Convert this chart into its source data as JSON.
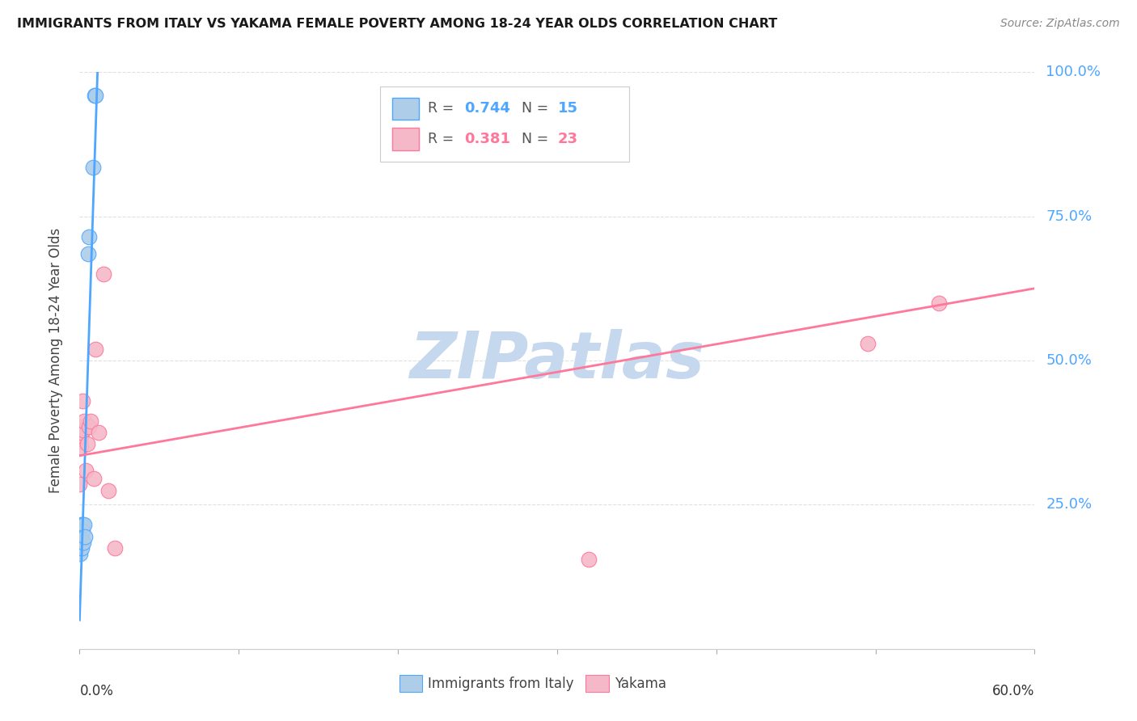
{
  "title": "IMMIGRANTS FROM ITALY VS YAKAMA FEMALE POVERTY AMONG 18-24 YEAR OLDS CORRELATION CHART",
  "source": "Source: ZipAtlas.com",
  "ylabel": "Female Poverty Among 18-24 Year Olds",
  "y_axis_max": 1.0,
  "y_axis_min": 0.0,
  "x_axis_max": 0.6,
  "x_axis_min": 0.0,
  "italy_R": "0.744",
  "italy_N": "15",
  "yakama_R": "0.381",
  "yakama_N": "23",
  "italy_color": "#aecde8",
  "yakama_color": "#f4b8c8",
  "italy_line_color": "#4da6ff",
  "yakama_line_color": "#ff7799",
  "italy_x": [
    0.0005,
    0.0005,
    0.001,
    0.0012,
    0.0015,
    0.0018,
    0.002,
    0.0022,
    0.003,
    0.0032,
    0.0055,
    0.006,
    0.0085,
    0.0095,
    0.01
  ],
  "italy_y": [
    0.195,
    0.165,
    0.215,
    0.19,
    0.175,
    0.215,
    0.205,
    0.185,
    0.215,
    0.195,
    0.685,
    0.715,
    0.835,
    0.96,
    0.96
  ],
  "yakama_x": [
    0.0,
    0.0002,
    0.0005,
    0.0008,
    0.001,
    0.0012,
    0.0015,
    0.0018,
    0.0022,
    0.003,
    0.004,
    0.005,
    0.006,
    0.007,
    0.009,
    0.01,
    0.012,
    0.015,
    0.018,
    0.022,
    0.32,
    0.495,
    0.54
  ],
  "yakama_y": [
    0.285,
    0.36,
    0.375,
    0.35,
    0.37,
    0.385,
    0.375,
    0.43,
    0.38,
    0.395,
    0.31,
    0.355,
    0.385,
    0.395,
    0.295,
    0.52,
    0.375,
    0.65,
    0.275,
    0.175,
    0.155,
    0.53,
    0.6
  ],
  "italy_trend_x": [
    0.0,
    0.0115
  ],
  "italy_trend_y": [
    0.05,
    1.02
  ],
  "yakama_trend_x": [
    0.0,
    0.6
  ],
  "yakama_trend_y": [
    0.335,
    0.625
  ],
  "watermark": "ZIPatlas",
  "watermark_color": "#c5d8ee",
  "background_color": "#ffffff",
  "grid_color": "#e0e0e0"
}
